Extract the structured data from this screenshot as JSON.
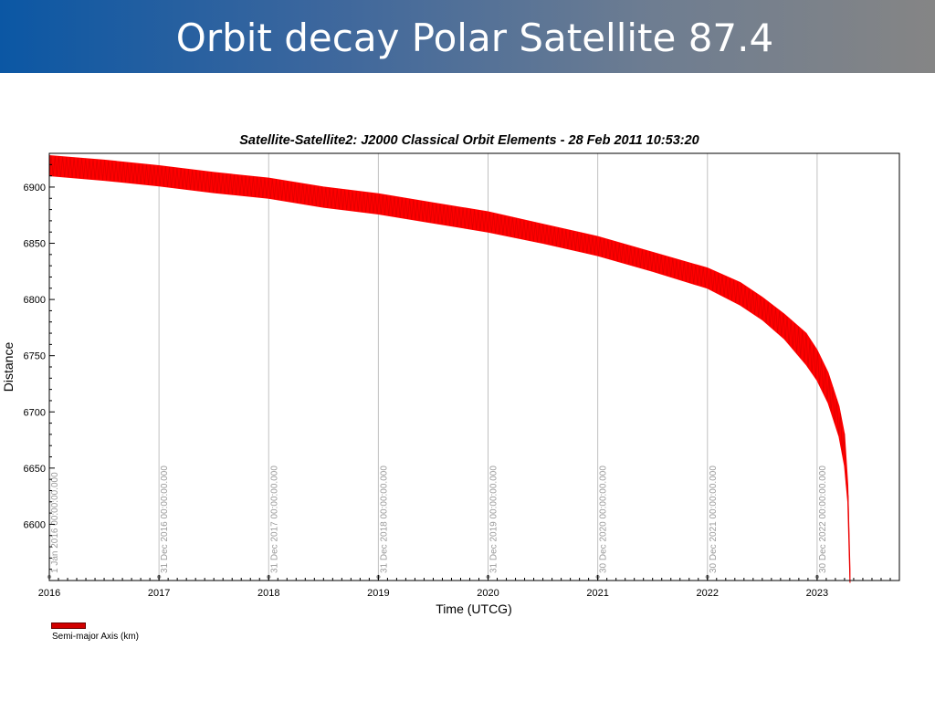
{
  "slide": {
    "title": "Orbit decay Polar Satellite 87.4"
  },
  "chart_data": {
    "type": "line",
    "title": "Satellite-Satellite2:  J2000 Classical Orbit Elements - 28 Feb 2011 10:53:20",
    "xlabel": "Time (UTCG)",
    "ylabel": "Distance",
    "xlim": [
      2016.0,
      2023.75
    ],
    "ylim": [
      6550,
      6930
    ],
    "x_ticks": [
      "2016",
      "2017",
      "2018",
      "2019",
      "2020",
      "2021",
      "2022",
      "2023"
    ],
    "y_ticks": [
      6600,
      6650,
      6700,
      6750,
      6800,
      6850,
      6900
    ],
    "grid": "vertical lines at epoch markers",
    "legend_placement": "bottom-left",
    "colors": {
      "series": "#ff0000",
      "legend_swatch": "#d10000",
      "gridline": "#c0c0c0"
    },
    "epoch_markers": [
      {
        "x": 2016.0,
        "label": "1 Jan 2016 00:00:00.000"
      },
      {
        "x": 2017.0,
        "label": "31 Dec 2016 00:00:00.000"
      },
      {
        "x": 2018.0,
        "label": "31 Dec 2017 00:00:00.000"
      },
      {
        "x": 2019.0,
        "label": "31 Dec 2018 00:00:00.000"
      },
      {
        "x": 2020.0,
        "label": "31 Dec 2019 00:00:00.000"
      },
      {
        "x": 2021.0,
        "label": "30 Dec 2020 00:00:00.000"
      },
      {
        "x": 2022.0,
        "label": "30 Dec 2021 00:00:00.000"
      },
      {
        "x": 2023.0,
        "label": "30 Dec 2022 00:00:00.000"
      }
    ],
    "series": [
      {
        "name": "Semi-major Axis (km)",
        "x": [
          2016.0,
          2016.5,
          2017.0,
          2017.5,
          2018.0,
          2018.5,
          2019.0,
          2019.5,
          2020.0,
          2020.5,
          2021.0,
          2021.5,
          2022.0,
          2022.3,
          2022.5,
          2022.7,
          2022.9,
          2023.0,
          2023.1,
          2023.2,
          2023.25,
          2023.28,
          2023.3
        ],
        "upper": [
          6928,
          6924,
          6919,
          6913,
          6908,
          6900,
          6894,
          6886,
          6878,
          6867,
          6856,
          6842,
          6828,
          6815,
          6802,
          6787,
          6770,
          6755,
          6735,
          6705,
          6680,
          6635,
          6560
        ],
        "lower": [
          6910,
          6906,
          6901,
          6895,
          6890,
          6882,
          6876,
          6868,
          6860,
          6850,
          6839,
          6825,
          6810,
          6795,
          6782,
          6765,
          6742,
          6728,
          6708,
          6678,
          6652,
          6620,
          6548
        ]
      }
    ]
  }
}
